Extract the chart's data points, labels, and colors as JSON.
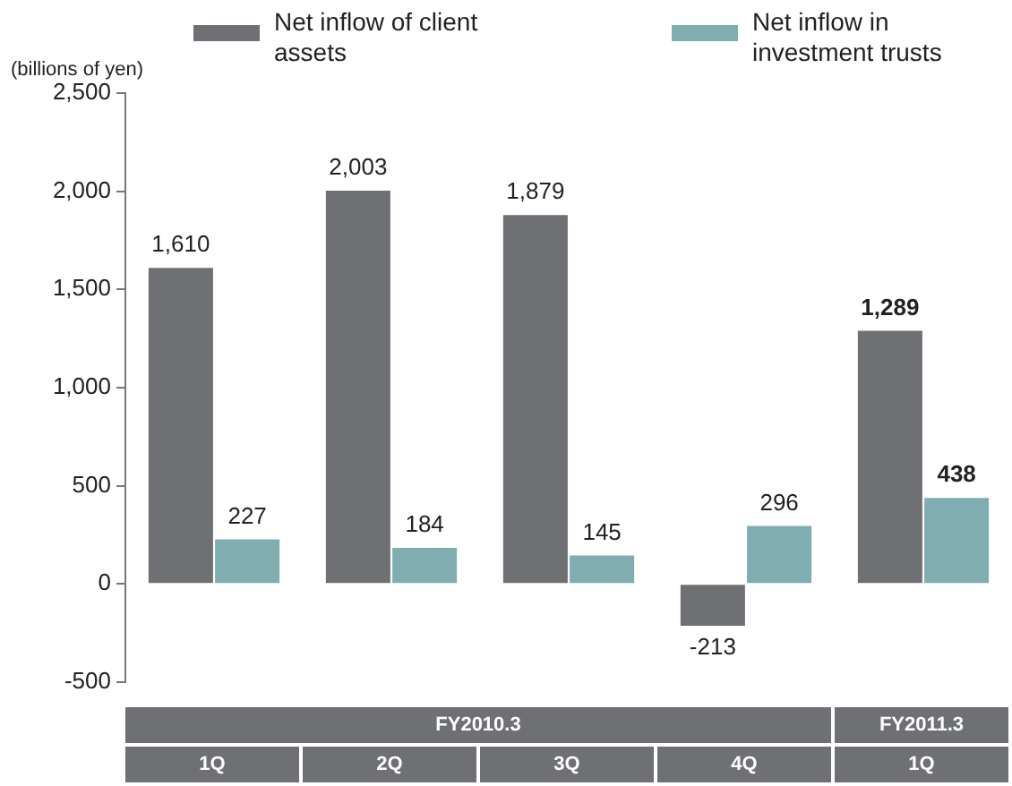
{
  "chart_data": {
    "type": "bar",
    "ylabel": "(billions of yen)",
    "categories": [
      "1Q",
      "2Q",
      "3Q",
      "4Q",
      "1Q"
    ],
    "series": [
      {
        "name": "Net inflow of client assets",
        "color": "#6f7073",
        "values": [
          1610,
          2003,
          1879,
          -213,
          1289
        ],
        "value_labels": [
          "1,610",
          "2,003",
          "1,879",
          "-213",
          "1,289"
        ]
      },
      {
        "name": "Net inflow in investment trusts",
        "color": "#7fadb0",
        "values": [
          227,
          184,
          145,
          296,
          438
        ],
        "value_labels": [
          "227",
          "184",
          "145",
          "296",
          "438"
        ]
      }
    ],
    "ylim": [
      -500,
      2500
    ],
    "yticks": [
      {
        "value": 2500,
        "label": "2,500"
      },
      {
        "value": 2000,
        "label": "2,000"
      },
      {
        "value": 1500,
        "label": "1,500"
      },
      {
        "value": 1000,
        "label": "1,000"
      },
      500,
      0,
      -500
    ],
    "legend": "top",
    "grid": false,
    "annotations": [
      "FY2010.3",
      "FY2011.3"
    ]
  }
}
